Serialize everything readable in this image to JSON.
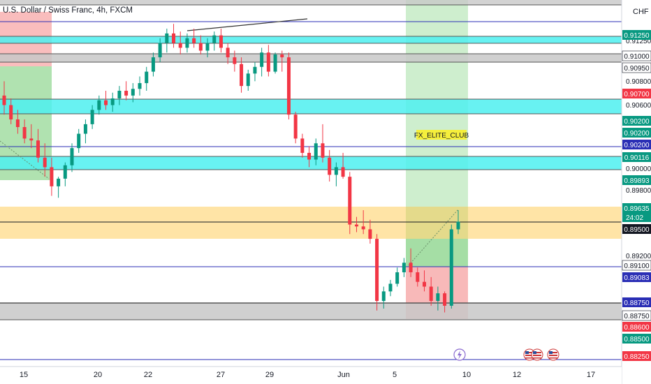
{
  "header": {
    "title": "U.S. Dollar / Swiss Franc, 4h, FXCM",
    "currency": "CHF"
  },
  "chart_data": {
    "type": "candlestick",
    "symbol": "USDCHF",
    "timeframe": "4h",
    "ylim": [
      0.8815,
      0.9195
    ],
    "x_ticks": [
      "15",
      "20",
      "22",
      "27",
      "29",
      "Jun",
      "5",
      "10",
      "12",
      "17"
    ],
    "y_ticks": [
      "0.91250",
      "0.91000",
      "0.90950",
      "0.90800",
      "0.90700",
      "0.90600",
      "0.90200",
      "0.90200",
      "0.90200",
      "0.90116",
      "0.90000",
      "0.89893",
      "0.89800",
      "0.89635",
      "0.89500",
      "0.89200",
      "0.89100",
      "0.89083",
      "0.88750",
      "0.88750",
      "0.88600",
      "0.88500",
      "0.88250"
    ],
    "current_price": "0.89635",
    "countdown": "24:02",
    "annotation": "FX_ELITE_CLUB",
    "candles": [
      {
        "o": 0.9095,
        "h": 0.911,
        "l": 0.9075,
        "c": 0.9085
      },
      {
        "o": 0.9085,
        "h": 0.9092,
        "l": 0.9065,
        "c": 0.907
      },
      {
        "o": 0.907,
        "h": 0.908,
        "l": 0.9055,
        "c": 0.9062
      },
      {
        "o": 0.9062,
        "h": 0.907,
        "l": 0.9045,
        "c": 0.905
      },
      {
        "o": 0.905,
        "h": 0.9065,
        "l": 0.904,
        "c": 0.9048
      },
      {
        "o": 0.9048,
        "h": 0.906,
        "l": 0.9025,
        "c": 0.903
      },
      {
        "o": 0.903,
        "h": 0.9045,
        "l": 0.901,
        "c": 0.902
      },
      {
        "o": 0.902,
        "h": 0.903,
        "l": 0.899,
        "c": 0.9
      },
      {
        "o": 0.9,
        "h": 0.901,
        "l": 0.8988,
        "c": 0.9008
      },
      {
        "o": 0.9008,
        "h": 0.9025,
        "l": 0.9,
        "c": 0.9022
      },
      {
        "o": 0.9022,
        "h": 0.9045,
        "l": 0.9015,
        "c": 0.904
      },
      {
        "o": 0.904,
        "h": 0.906,
        "l": 0.9035,
        "c": 0.9055
      },
      {
        "o": 0.9055,
        "h": 0.907,
        "l": 0.9045,
        "c": 0.9065
      },
      {
        "o": 0.9065,
        "h": 0.9085,
        "l": 0.906,
        "c": 0.908
      },
      {
        "o": 0.908,
        "h": 0.9095,
        "l": 0.9075,
        "c": 0.909
      },
      {
        "o": 0.909,
        "h": 0.91,
        "l": 0.908,
        "c": 0.9085
      },
      {
        "o": 0.9085,
        "h": 0.9098,
        "l": 0.9078,
        "c": 0.9092
      },
      {
        "o": 0.9092,
        "h": 0.9105,
        "l": 0.9085,
        "c": 0.91
      },
      {
        "o": 0.91,
        "h": 0.911,
        "l": 0.909,
        "c": 0.9095
      },
      {
        "o": 0.9095,
        "h": 0.9108,
        "l": 0.9088,
        "c": 0.9102
      },
      {
        "o": 0.9102,
        "h": 0.9115,
        "l": 0.9095,
        "c": 0.9108
      },
      {
        "o": 0.9108,
        "h": 0.9125,
        "l": 0.91,
        "c": 0.912
      },
      {
        "o": 0.912,
        "h": 0.914,
        "l": 0.9115,
        "c": 0.9135
      },
      {
        "o": 0.9135,
        "h": 0.9155,
        "l": 0.913,
        "c": 0.915
      },
      {
        "o": 0.915,
        "h": 0.9165,
        "l": 0.914,
        "c": 0.916
      },
      {
        "o": 0.916,
        "h": 0.917,
        "l": 0.9145,
        "c": 0.915
      },
      {
        "o": 0.915,
        "h": 0.9162,
        "l": 0.9138,
        "c": 0.9145
      },
      {
        "o": 0.9145,
        "h": 0.916,
        "l": 0.914,
        "c": 0.9155
      },
      {
        "o": 0.9155,
        "h": 0.9165,
        "l": 0.9145,
        "c": 0.915
      },
      {
        "o": 0.915,
        "h": 0.9158,
        "l": 0.9138,
        "c": 0.9142
      },
      {
        "o": 0.9142,
        "h": 0.9155,
        "l": 0.9135,
        "c": 0.915
      },
      {
        "o": 0.915,
        "h": 0.9162,
        "l": 0.9142,
        "c": 0.9158
      },
      {
        "o": 0.9158,
        "h": 0.9165,
        "l": 0.914,
        "c": 0.9145
      },
      {
        "o": 0.9145,
        "h": 0.915,
        "l": 0.9128,
        "c": 0.9135
      },
      {
        "o": 0.9135,
        "h": 0.9142,
        "l": 0.912,
        "c": 0.9128
      },
      {
        "o": 0.9128,
        "h": 0.9135,
        "l": 0.9098,
        "c": 0.9105
      },
      {
        "o": 0.9105,
        "h": 0.9122,
        "l": 0.91,
        "c": 0.9118
      },
      {
        "o": 0.9118,
        "h": 0.913,
        "l": 0.911,
        "c": 0.9125
      },
      {
        "o": 0.9125,
        "h": 0.9145,
        "l": 0.9115,
        "c": 0.914
      },
      {
        "o": 0.914,
        "h": 0.9148,
        "l": 0.9115,
        "c": 0.912
      },
      {
        "o": 0.912,
        "h": 0.914,
        "l": 0.9118,
        "c": 0.9138
      },
      {
        "o": 0.9138,
        "h": 0.9142,
        "l": 0.912,
        "c": 0.9135
      },
      {
        "o": 0.9135,
        "h": 0.914,
        "l": 0.907,
        "c": 0.9075
      },
      {
        "o": 0.9075,
        "h": 0.9078,
        "l": 0.9045,
        "c": 0.905
      },
      {
        "o": 0.905,
        "h": 0.9055,
        "l": 0.903,
        "c": 0.9035
      },
      {
        "o": 0.9035,
        "h": 0.9042,
        "l": 0.902,
        "c": 0.9028
      },
      {
        "o": 0.9028,
        "h": 0.905,
        "l": 0.9022,
        "c": 0.9045
      },
      {
        "o": 0.9045,
        "h": 0.9065,
        "l": 0.9025,
        "c": 0.903
      },
      {
        "o": 0.903,
        "h": 0.9038,
        "l": 0.9005,
        "c": 0.9012
      },
      {
        "o": 0.9012,
        "h": 0.9025,
        "l": 0.9,
        "c": 0.902
      },
      {
        "o": 0.902,
        "h": 0.9035,
        "l": 0.9008,
        "c": 0.901
      },
      {
        "o": 0.901,
        "h": 0.9015,
        "l": 0.895,
        "c": 0.896
      },
      {
        "o": 0.896,
        "h": 0.8968,
        "l": 0.8952,
        "c": 0.8958
      },
      {
        "o": 0.8958,
        "h": 0.8975,
        "l": 0.895,
        "c": 0.8955
      },
      {
        "o": 0.8955,
        "h": 0.8965,
        "l": 0.894,
        "c": 0.8945
      },
      {
        "o": 0.8945,
        "h": 0.895,
        "l": 0.887,
        "c": 0.888
      },
      {
        "o": 0.888,
        "h": 0.8895,
        "l": 0.8872,
        "c": 0.889
      },
      {
        "o": 0.889,
        "h": 0.8902,
        "l": 0.8885,
        "c": 0.8898
      },
      {
        "o": 0.8898,
        "h": 0.8915,
        "l": 0.8895,
        "c": 0.891
      },
      {
        "o": 0.891,
        "h": 0.8925,
        "l": 0.8905,
        "c": 0.892
      },
      {
        "o": 0.892,
        "h": 0.8935,
        "l": 0.8905,
        "c": 0.891
      },
      {
        "o": 0.891,
        "h": 0.8915,
        "l": 0.8895,
        "c": 0.89
      },
      {
        "o": 0.89,
        "h": 0.8912,
        "l": 0.889,
        "c": 0.8895
      },
      {
        "o": 0.8895,
        "h": 0.8905,
        "l": 0.8875,
        "c": 0.888
      },
      {
        "o": 0.888,
        "h": 0.8895,
        "l": 0.887,
        "c": 0.8888
      },
      {
        "o": 0.8888,
        "h": 0.889,
        "l": 0.8868,
        "c": 0.8875
      },
      {
        "o": 0.8875,
        "h": 0.896,
        "l": 0.8872,
        "c": 0.8955
      },
      {
        "o": 0.8955,
        "h": 0.8975,
        "l": 0.895,
        "c": 0.8963
      }
    ]
  },
  "price_tags": [
    {
      "label": "0.91250",
      "bg": "#089981",
      "fg": "#ffffff"
    },
    {
      "label": "0.91000",
      "bg": "#ffffff",
      "fg": "#131722"
    },
    {
      "label": "0.90950",
      "bg": "#ffffff",
      "fg": "#131722"
    },
    {
      "label": "0.90700",
      "bg": "#f23645",
      "fg": "#ffffff"
    },
    {
      "label": "0.90200",
      "bg": "#089981",
      "fg": "#ffffff"
    },
    {
      "label": "0.90200",
      "bg": "#089981",
      "fg": "#ffffff"
    },
    {
      "label": "0.90200",
      "bg": "#2a2eb5",
      "fg": "#ffffff"
    },
    {
      "label": "0.90116",
      "bg": "#089981",
      "fg": "#ffffff"
    },
    {
      "label": "0.89893",
      "bg": "#089981",
      "fg": "#ffffff"
    },
    {
      "label": "0.89635",
      "bg": "#089981",
      "fg": "#ffffff"
    },
    {
      "label": "0.89500",
      "bg": "#131722",
      "fg": "#ffffff"
    },
    {
      "label": "0.89100",
      "bg": "#ffffff",
      "fg": "#131722"
    },
    {
      "label": "0.89083",
      "bg": "#2a2eb5",
      "fg": "#ffffff"
    },
    {
      "label": "0.88750",
      "bg": "#2a2eb5",
      "fg": "#ffffff"
    },
    {
      "label": "0.88750",
      "bg": "#ffffff",
      "fg": "#131722"
    },
    {
      "label": "0.88600",
      "bg": "#f23645",
      "fg": "#ffffff"
    },
    {
      "label": "0.88500",
      "bg": "#089981",
      "fg": "#ffffff"
    },
    {
      "label": "0.88250",
      "bg": "#f23645",
      "fg": "#ffffff"
    }
  ],
  "colors": {
    "bull": "#089981",
    "bear": "#f23645",
    "zone_cyan": "#4ef0f0",
    "zone_gray": "#c8c8c8",
    "zone_yellow": "#ffd980",
    "zone_green": "#8fd68f",
    "zone_red": "#f6a1a1",
    "line_blue": "#2a2eb5",
    "label_yellow": "#f5ef3c"
  },
  "icons": [
    "lightning-icon",
    "us-flag-icon",
    "us-flag-icon",
    "us-flag-icon"
  ]
}
